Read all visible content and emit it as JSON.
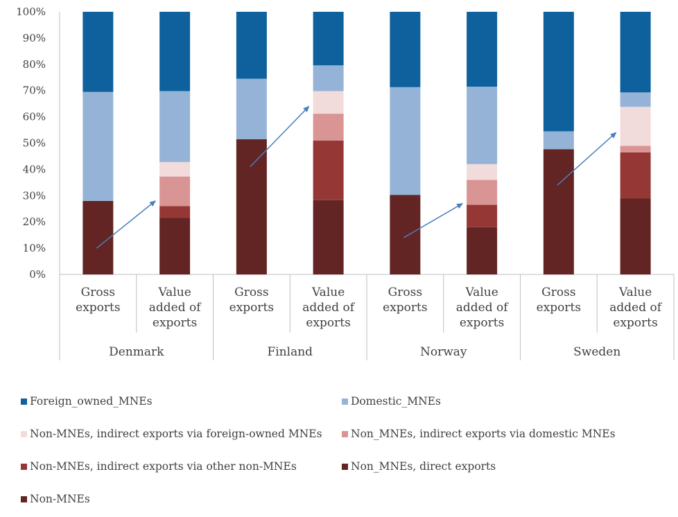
{
  "chart_data": {
    "type": "bar",
    "stacked": true,
    "normalized": true,
    "ylim": [
      0,
      100
    ],
    "yticks": [
      "0%",
      "10%",
      "20%",
      "30%",
      "40%",
      "50%",
      "60%",
      "70%",
      "80%",
      "90%",
      "100%"
    ],
    "groups": [
      "Denmark",
      "Finland",
      "Norway",
      "Sweden"
    ],
    "categories": [
      [
        "Gross",
        "exports"
      ],
      [
        "Value",
        "added of",
        "exports"
      ],
      [
        "Gross",
        "exports"
      ],
      [
        "Value",
        "added of",
        "exports"
      ],
      [
        "Gross",
        "exports"
      ],
      [
        "Value",
        "added of",
        "exports"
      ],
      [
        "Gross",
        "exports"
      ],
      [
        "Value",
        "added of",
        "exports"
      ]
    ],
    "series": [
      {
        "name": "Non-MNEs",
        "color": "#632523",
        "values": [
          28,
          0,
          51.5,
          0,
          30.3,
          0,
          47.7,
          0
        ]
      },
      {
        "name": "Non_MNEs, direct exports",
        "color": "#632523",
        "values": [
          0,
          21.5,
          0,
          28.3,
          0,
          18,
          0,
          29
        ]
      },
      {
        "name": "Non-MNEs, indirect exports via other non-MNEs",
        "color": "#953735",
        "values": [
          0,
          4.5,
          0,
          22.7,
          0,
          8.5,
          0,
          17.5
        ]
      },
      {
        "name": "Non_MNEs, indirect exports via domestic MNEs",
        "color": "#d99594",
        "values": [
          0,
          11.3,
          0,
          10.2,
          0,
          9.5,
          0,
          2.5
        ]
      },
      {
        "name": "Non-MNEs, indirect exports via foreign-owned MNEs",
        "color": "#f2dcdb",
        "values": [
          0,
          5.5,
          0,
          8.6,
          0,
          6,
          0,
          14.8
        ]
      },
      {
        "name": "Domestic_MNEs",
        "color": "#95b3d7",
        "values": [
          41.5,
          27,
          23,
          9.8,
          41,
          29.5,
          6.8,
          5.5
        ]
      },
      {
        "name": "Foreign_owned_MNEs",
        "color": "#0e619d",
        "values": [
          30.5,
          30.2,
          25.5,
          20.4,
          28.7,
          28.5,
          45.5,
          30.7
        ]
      }
    ],
    "arrows": [
      {
        "from": [
          0,
          10
        ],
        "to": [
          1,
          28
        ]
      },
      {
        "from": [
          2,
          41
        ],
        "to": [
          3,
          64
        ]
      },
      {
        "from": [
          4,
          14
        ],
        "to": [
          5,
          27
        ]
      },
      {
        "from": [
          6,
          34
        ],
        "to": [
          7,
          54
        ]
      }
    ],
    "legend": [
      "Foreign_owned_MNEs",
      "Domestic_MNEs",
      "Non-MNEs, indirect exports via foreign-owned MNEs",
      "Non_MNEs, indirect exports via domestic MNEs",
      "Non-MNEs, indirect exports via other non-MNEs",
      "Non_MNEs, direct exports",
      "Non-MNEs"
    ],
    "legend_position": "bottom",
    "grid": false,
    "arrow_color": "#4a7ebb",
    "axis_color": "#bfbfbf"
  }
}
